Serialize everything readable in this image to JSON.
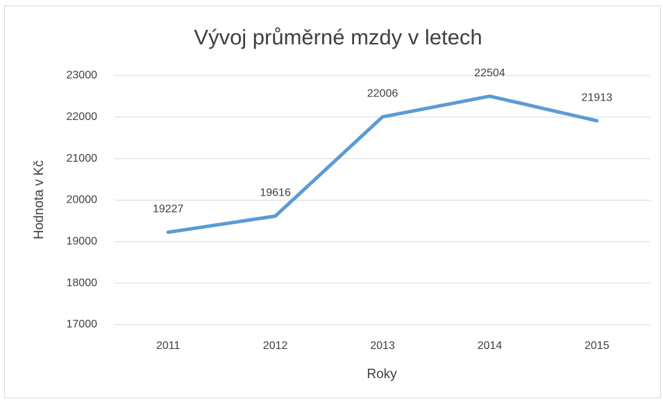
{
  "chart_data": {
    "type": "line",
    "title": "Vývoj průměrné mzdy v letech",
    "x_label": "Roky",
    "y_label": "Hodnota v Kč",
    "categories": [
      "2011",
      "2012",
      "2013",
      "2014",
      "2015"
    ],
    "series": [
      {
        "name": "Hodnota v Kč",
        "color": "#5b9bd5",
        "values": [
          19227,
          19616,
          22006,
          22504,
          21913
        ]
      }
    ],
    "ylim": [
      17000,
      23000
    ],
    "yticks": [
      17000,
      18000,
      19000,
      20000,
      21000,
      22000,
      23000
    ],
    "grid": true,
    "legend": false
  }
}
